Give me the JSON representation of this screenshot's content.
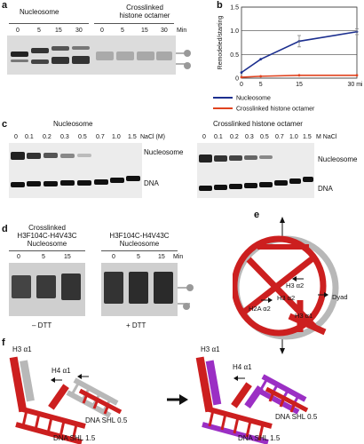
{
  "panel_labels": {
    "a": "a",
    "b": "b",
    "c": "c",
    "d": "d",
    "e": "e",
    "f": "f"
  },
  "panel_a": {
    "group1": "Nucleosome",
    "group2_line1": "Crosslinked",
    "group2_line2": "histone octamer",
    "lanes": [
      "0",
      "5",
      "15",
      "30",
      "0",
      "5",
      "15",
      "30"
    ],
    "unit": "Min"
  },
  "chart_data": {
    "type": "line",
    "x": [
      0,
      5,
      15,
      30
    ],
    "xticks": [
      "0",
      "5",
      "15",
      "30 min"
    ],
    "ylabel": "Remodeled/starting",
    "yticks": [
      "0",
      "0.5",
      "1.0",
      "1.5"
    ],
    "ylim": [
      0,
      1.5
    ],
    "series": [
      {
        "name": "Nucleosome",
        "color": "#1c2f8f",
        "values": [
          0.12,
          0.4,
          0.78,
          0.98
        ],
        "error": [
          0,
          0,
          0.12,
          0.06
        ]
      },
      {
        "name": "Crosslinked histone octamer",
        "color": "#e0431f",
        "values": [
          0.02,
          0.04,
          0.06,
          0.06
        ]
      }
    ],
    "grid": "horizontal",
    "legend": "bottom"
  },
  "panel_c": {
    "left_title": "Nucleosome",
    "left_lanes": [
      "0",
      "0.1",
      "0.2",
      "0.3",
      "0.5",
      "0.7",
      "1.0",
      "1.5"
    ],
    "left_unit": "NaCl (M)",
    "left_label_top": "Nucleosome",
    "left_label_bottom": "DNA",
    "right_title": "Crosslinked histone octamer",
    "right_lanes": [
      "0",
      "0.1",
      "0.2",
      "0.3",
      "0.5",
      "0.7",
      "1.0",
      "1.5"
    ],
    "right_unit": "M NaCl",
    "right_label_top": "Nucleosome",
    "right_label_bottom": "DNA"
  },
  "panel_d": {
    "left_title1": "Crosslinked",
    "left_title2": "H3F104C-H4V43C",
    "left_title3": "Nucleosome",
    "right_title1": "H3F104C-H4V43C",
    "right_title2": "Nucleosome",
    "left_lanes": [
      "0",
      "5",
      "15"
    ],
    "right_lanes": [
      "0",
      "5",
      "15"
    ],
    "unit": "Min",
    "left_cond": "– DTT",
    "right_cond": "+ DTT"
  },
  "panel_e": {
    "h3a2": "H3 α2",
    "h2aa2": "H2A α2",
    "h3a2b": "H3 α2",
    "h3a1": "H3 α1",
    "dyad": "Dyad"
  },
  "panel_f": {
    "l_h3a1": "H3 α1",
    "l_h4a1": "H4 α1",
    "l_shl05": "DNA SHL 0.5",
    "l_shl15": "DNA SHL 1.5",
    "r_h3a1": "H3 α1",
    "r_h4a1": "H4 α1",
    "r_shl05": "DNA SHL 0.5",
    "r_shl15": "DNA SHL 1.5"
  }
}
